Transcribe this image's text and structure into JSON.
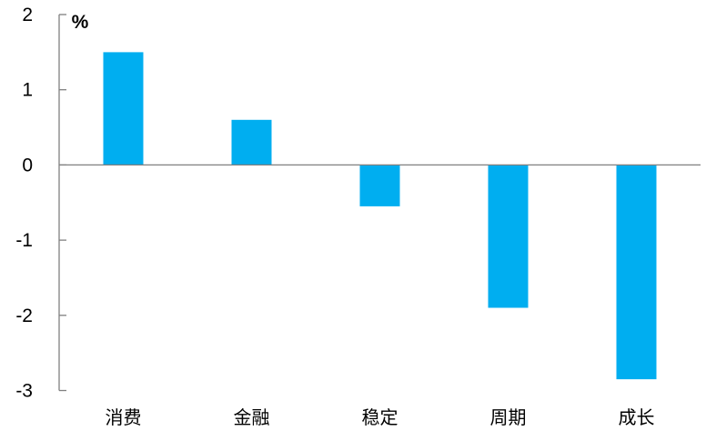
{
  "chart_data": {
    "type": "bar",
    "title": "",
    "xlabel": "",
    "ylabel": "%",
    "categories": [
      "消费",
      "金融",
      "稳定",
      "周期",
      "成长"
    ],
    "values": [
      1.5,
      0.6,
      -0.55,
      -1.9,
      -2.85
    ],
    "series": [
      {
        "name": "",
        "values": [
          1.5,
          0.6,
          -0.55,
          -1.9,
          -2.85
        ]
      }
    ],
    "ylim": [
      -3,
      2
    ],
    "yticks": [
      2,
      1,
      0,
      -1,
      -2,
      -3
    ],
    "ytick_labels": [
      "2",
      "1",
      "0",
      "-1",
      "-2",
      "-3"
    ],
    "grid": false,
    "legend_position": "none",
    "colors": {
      "bar": "#00AEF0",
      "axis": "#808080",
      "text": "#000000",
      "background": "#FFFFFF"
    }
  }
}
